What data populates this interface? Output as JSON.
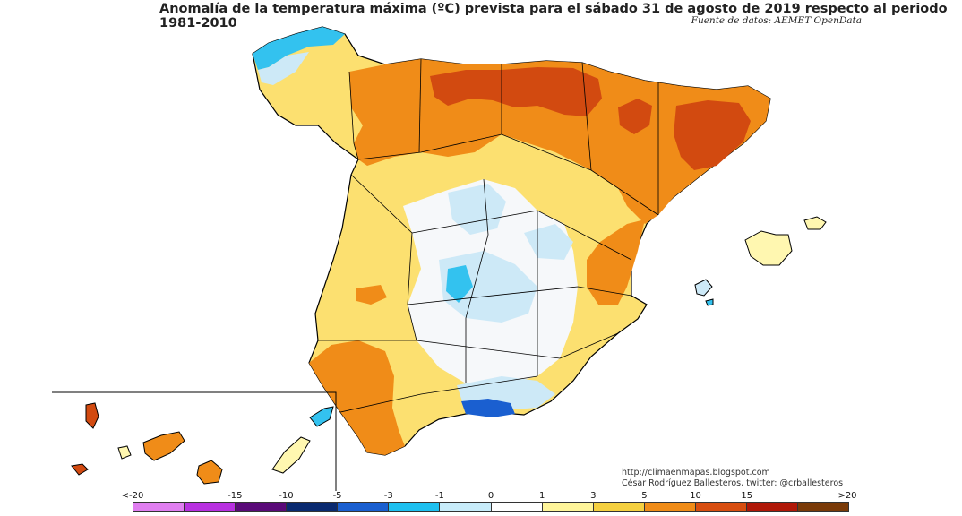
{
  "title": "Anomalía de la temperatura máxima (ºC) prevista para el sábado 31 de agosto de 2019 respecto al periodo 1981-2010",
  "source": "Fuente de datos: AEMET OpenData",
  "credits": {
    "blog": "http://climaenmapas.blogspot.com",
    "author": "César Rodríguez Ballesteros, twitter: @crballesteros"
  },
  "legend": {
    "labels": [
      "<-20",
      "-15",
      "-10",
      "-5",
      "-3",
      "-1",
      "0",
      "1",
      "3",
      "5",
      "10",
      "15",
      ">20"
    ],
    "colors": [
      "#e07ef0",
      "#b830e0",
      "#5a0a78",
      "#0a2a70",
      "#1a5fd0",
      "#1ec0f0",
      "#c8ecfa",
      "#ffffff",
      "#fff59a",
      "#f5d040",
      "#f08c18",
      "#d84e10",
      "#b01808",
      "#7a3a08"
    ]
  },
  "colors": {
    "very_warm": "#d24a10",
    "warm": "#f08c18",
    "mild_warm": "#fce070",
    "slight_warm": "#fff7b0",
    "neutral": "#f6f8fa",
    "slight_cool": "#cde9f7",
    "cool": "#33c2ef",
    "cold": "#1a5fd0",
    "coast_water": "#ffffff"
  }
}
